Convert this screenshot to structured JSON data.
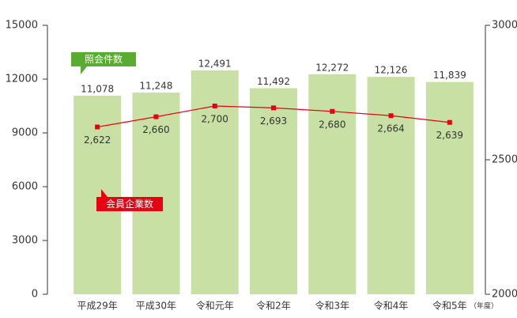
{
  "chart_data": {
    "type": "bar",
    "categories": [
      "平成29年",
      "平成30年",
      "令和元年",
      "令和2年",
      "令和3年",
      "令和4年",
      "令和5年"
    ],
    "x_unit": "（年度）",
    "series": [
      {
        "name": "照会件数",
        "type": "bar",
        "color": "#c8e0a4",
        "callout_color": "#5aab32",
        "values": [
          11078,
          11248,
          12491,
          11492,
          12272,
          12126,
          11839
        ],
        "value_labels": [
          "11,078",
          "11,248",
          "12,491",
          "11,492",
          "12,272",
          "12,126",
          "11,839"
        ]
      },
      {
        "name": "会員企業数",
        "type": "line",
        "axis": "y2",
        "color": "#e60012",
        "values": [
          2622,
          2660,
          2700,
          2693,
          2680,
          2664,
          2639
        ],
        "value_labels": [
          "2,622",
          "2,660",
          "2,700",
          "2,693",
          "2,680",
          "2,664",
          "2,639"
        ]
      }
    ],
    "ylim": [
      0,
      15000
    ],
    "yticks": [
      0,
      3000,
      6000,
      9000,
      12000,
      15000
    ],
    "y2lim": [
      2000,
      3000
    ],
    "y2ticks": [
      2000,
      2500,
      3000
    ]
  }
}
